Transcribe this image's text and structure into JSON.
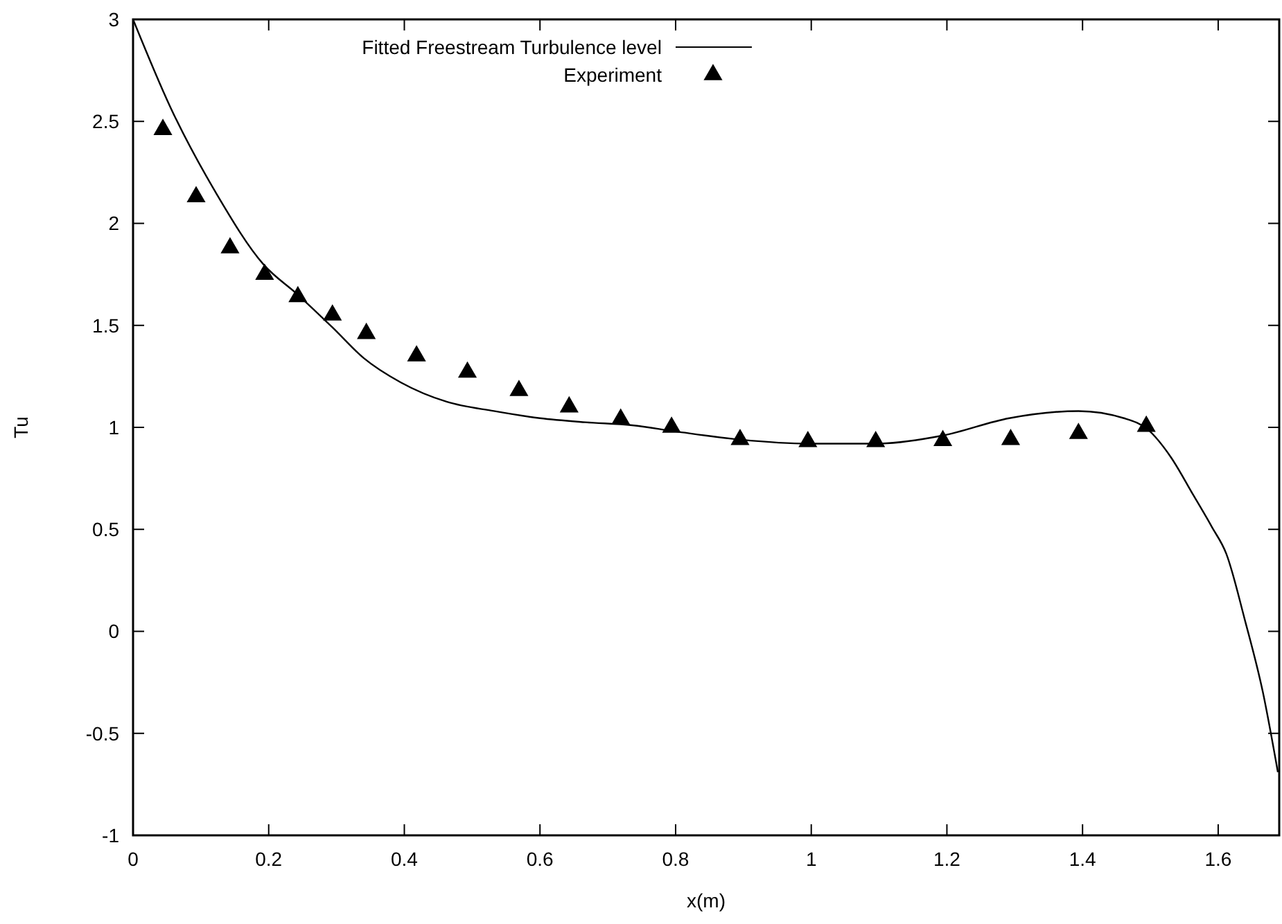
{
  "chart_data": {
    "type": "line",
    "xlabel": "x(m)",
    "ylabel": "Tu",
    "xlim": [
      0,
      1.69
    ],
    "ylim": [
      -1,
      3
    ],
    "xticks": [
      0,
      0.2,
      0.4,
      0.6,
      0.8,
      1,
      1.2,
      1.4,
      1.6
    ],
    "yticks": [
      -1,
      -0.5,
      0,
      0.5,
      1,
      1.5,
      2,
      2.5,
      3
    ],
    "grid": false,
    "legend": "top",
    "series": [
      {
        "name": "Fitted Freestream Turbulence level",
        "color": "#000000",
        "marker": "none",
        "line_style": "solid",
        "x": [
          0,
          0.055,
          0.124,
          0.192,
          0.243,
          0.294,
          0.34,
          0.395,
          0.463,
          0.532,
          0.6,
          0.667,
          0.736,
          0.8,
          0.895,
          0.995,
          1.095,
          1.194,
          1.292,
          1.394,
          1.461,
          1.496,
          1.53,
          1.563,
          1.591,
          1.612,
          1.639,
          1.666,
          1.688
        ],
        "values": [
          3,
          2.57,
          2.14,
          1.8,
          1.65,
          1.49,
          1.34,
          1.22,
          1.125,
          1.08,
          1.045,
          1.025,
          1.01,
          0.98,
          0.94,
          0.92,
          0.92,
          0.96,
          1.045,
          1.08,
          1.045,
          0.99,
          0.855,
          0.67,
          0.51,
          0.38,
          0.06,
          -0.3,
          -0.69
        ]
      },
      {
        "name": "Experiment",
        "type": "scatter",
        "color": "#000000",
        "marker": "triangle",
        "x": [
          0.044,
          0.093,
          0.143,
          0.194,
          0.243,
          0.294,
          0.344,
          0.418,
          0.493,
          0.569,
          0.643,
          0.719,
          0.794,
          0.895,
          0.995,
          1.095,
          1.194,
          1.294,
          1.394,
          1.494
        ],
        "values": [
          2.46,
          2.13,
          1.88,
          1.75,
          1.64,
          1.55,
          1.46,
          1.35,
          1.27,
          1.18,
          1.1,
          1.04,
          1.0,
          0.94,
          0.93,
          0.93,
          0.935,
          0.94,
          0.97,
          1.005
        ]
      }
    ]
  }
}
